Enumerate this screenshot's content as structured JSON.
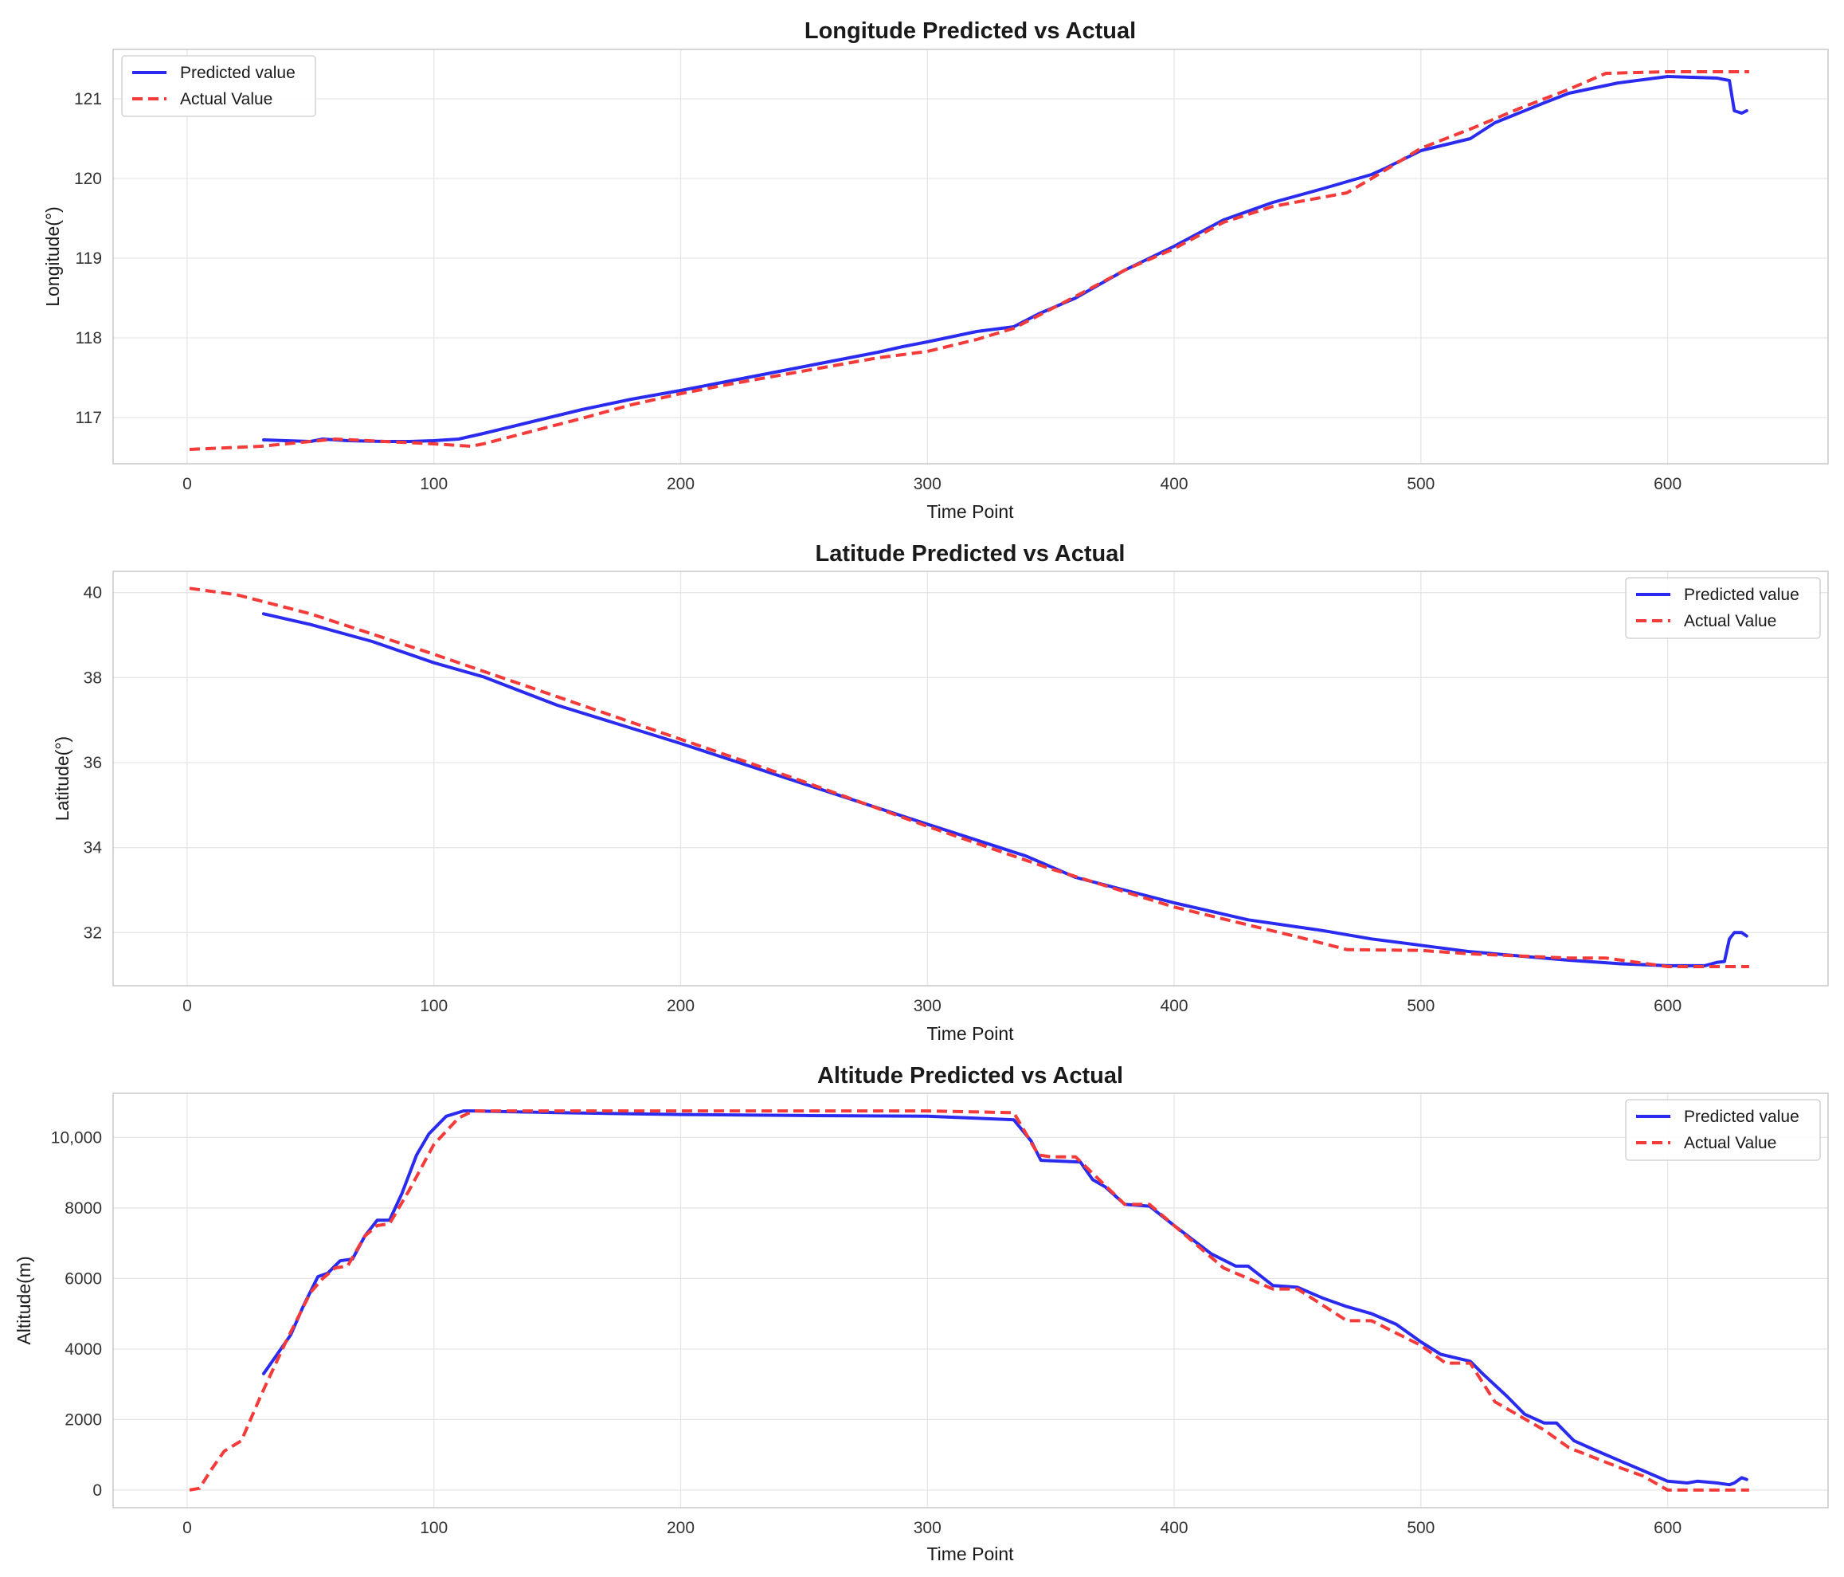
{
  "colors": {
    "predicted": "#2b2bf0",
    "actual": "#f53a3a",
    "grid": "#e6e6e6",
    "frame": "#cccccc"
  },
  "chart_data": [
    {
      "type": "line",
      "title": "Longitude Predicted vs Actual",
      "xlabel": "Time Point",
      "ylabel": "Longitude(°)",
      "xlim": [
        -30,
        665
      ],
      "ylim": [
        116.42,
        121.62
      ],
      "x_ticks": [
        0,
        100,
        200,
        300,
        400,
        500,
        600
      ],
      "x_tick_labels": [
        "0",
        "100",
        "200",
        "300",
        "400",
        "500",
        "600"
      ],
      "y_ticks": [
        117,
        118,
        119,
        120,
        121
      ],
      "y_tick_labels": [
        "117",
        "118",
        "119",
        "120",
        "121"
      ],
      "grid": true,
      "legend_position": "top-left",
      "series": [
        {
          "name": "Predicted value",
          "style": "solid",
          "x": [
            31,
            40,
            50,
            55,
            65,
            80,
            90,
            100,
            110,
            120,
            140,
            160,
            180,
            200,
            220,
            240,
            260,
            280,
            290,
            300,
            320,
            335,
            345,
            360,
            380,
            400,
            420,
            440,
            460,
            480,
            485,
            500,
            520,
            530,
            550,
            560,
            580,
            600,
            620,
            625,
            627,
            630,
            632
          ],
          "y": [
            116.72,
            116.71,
            116.7,
            116.73,
            116.71,
            116.7,
            116.7,
            116.71,
            116.73,
            116.8,
            116.95,
            117.1,
            117.23,
            117.34,
            117.46,
            117.58,
            117.7,
            117.82,
            117.89,
            117.95,
            118.08,
            118.14,
            118.3,
            118.5,
            118.85,
            119.15,
            119.48,
            119.7,
            119.87,
            120.05,
            120.12,
            120.35,
            120.5,
            120.7,
            120.95,
            121.07,
            121.2,
            121.28,
            121.26,
            121.23,
            120.85,
            120.82,
            120.85
          ]
        },
        {
          "name": "Actual Value",
          "style": "dashed",
          "x": [
            1,
            30,
            50,
            60,
            80,
            100,
            115,
            120,
            140,
            160,
            180,
            200,
            220,
            240,
            260,
            280,
            300,
            320,
            335,
            360,
            380,
            400,
            420,
            440,
            470,
            480,
            500,
            520,
            540,
            560,
            575,
            600,
            633
          ],
          "y": [
            116.6,
            116.64,
            116.7,
            116.73,
            116.7,
            116.67,
            116.64,
            116.67,
            116.83,
            116.99,
            117.16,
            117.3,
            117.42,
            117.53,
            117.64,
            117.75,
            117.83,
            117.98,
            118.12,
            118.52,
            118.85,
            119.12,
            119.45,
            119.65,
            119.82,
            120,
            120.38,
            120.62,
            120.88,
            121.12,
            121.32,
            121.34,
            121.34
          ]
        }
      ]
    },
    {
      "type": "line",
      "title": "Latitude Predicted vs Actual",
      "xlabel": "Time Point",
      "ylabel": "Latitude(°)",
      "xlim": [
        -30,
        665
      ],
      "ylim": [
        30.75,
        40.5
      ],
      "x_ticks": [
        0,
        100,
        200,
        300,
        400,
        500,
        600
      ],
      "x_tick_labels": [
        "0",
        "100",
        "200",
        "300",
        "400",
        "500",
        "600"
      ],
      "y_ticks": [
        32,
        34,
        36,
        38,
        40
      ],
      "y_tick_labels": [
        "32",
        "34",
        "36",
        "38",
        "40"
      ],
      "grid": true,
      "legend_position": "top-right",
      "series": [
        {
          "name": "Predicted value",
          "style": "solid",
          "x": [
            31,
            50,
            75,
            100,
            120,
            150,
            200,
            250,
            300,
            340,
            360,
            380,
            400,
            430,
            460,
            480,
            500,
            520,
            540,
            560,
            580,
            600,
            615,
            620,
            623,
            625,
            627,
            630,
            632
          ],
          "y": [
            39.5,
            39.25,
            38.85,
            38.35,
            38.02,
            37.35,
            36.45,
            35.5,
            34.55,
            33.8,
            33.3,
            33.0,
            32.7,
            32.3,
            32.05,
            31.85,
            31.7,
            31.55,
            31.45,
            31.35,
            31.27,
            31.22,
            31.22,
            31.3,
            31.32,
            31.85,
            32.0,
            32.0,
            31.92
          ]
        },
        {
          "name": "Actual Value",
          "style": "dashed",
          "x": [
            1,
            20,
            50,
            100,
            150,
            200,
            250,
            300,
            350,
            400,
            450,
            470,
            500,
            520,
            560,
            575,
            600,
            633
          ],
          "y": [
            40.1,
            39.95,
            39.5,
            38.55,
            37.55,
            36.55,
            35.55,
            34.5,
            33.5,
            32.6,
            31.9,
            31.6,
            31.58,
            31.5,
            31.4,
            31.4,
            31.2,
            31.2
          ]
        }
      ]
    },
    {
      "type": "line",
      "title": "Altitude Predicted vs Actual",
      "xlabel": "Time Point",
      "ylabel": "Altitude(m)",
      "xlim": [
        -30,
        665
      ],
      "ylim": [
        -500,
        11250
      ],
      "x_ticks": [
        0,
        100,
        200,
        300,
        400,
        500,
        600
      ],
      "x_tick_labels": [
        "0",
        "100",
        "200",
        "300",
        "400",
        "500",
        "600"
      ],
      "y_ticks": [
        0,
        2000,
        4000,
        6000,
        8000,
        10000
      ],
      "y_tick_labels": [
        "0",
        "2000",
        "4000",
        "6000",
        "8000",
        "10,000"
      ],
      "grid": true,
      "legend_position": "top-right",
      "series": [
        {
          "name": "Predicted value",
          "style": "solid",
          "x": [
            31,
            35,
            42,
            47,
            53,
            57,
            62,
            67,
            72,
            77,
            82,
            87,
            93,
            98,
            105,
            112,
            116,
            150,
            200,
            250,
            300,
            335,
            342,
            346,
            362,
            367,
            372,
            380,
            390,
            400,
            415,
            425,
            430,
            440,
            450,
            460,
            470,
            480,
            490,
            500,
            508,
            520,
            525,
            535,
            542,
            550,
            555,
            562,
            570,
            580,
            590,
            600,
            608,
            612,
            620,
            625,
            627,
            630,
            632
          ],
          "y": [
            3300,
            3700,
            4400,
            5200,
            6050,
            6150,
            6500,
            6550,
            7200,
            7650,
            7650,
            8400,
            9500,
            10100,
            10600,
            10750,
            10750,
            10700,
            10650,
            10620,
            10600,
            10500,
            9900,
            9350,
            9300,
            8800,
            8600,
            8100,
            8050,
            7500,
            6700,
            6350,
            6350,
            5800,
            5750,
            5450,
            5200,
            5000,
            4700,
            4200,
            3850,
            3650,
            3300,
            2650,
            2150,
            1900,
            1900,
            1400,
            1150,
            850,
            550,
            250,
            200,
            250,
            200,
            150,
            200,
            350,
            300
          ]
        },
        {
          "name": "Actual Value",
          "style": "dashed",
          "x": [
            1,
            5,
            10,
            15,
            22,
            30,
            40,
            50,
            55,
            60,
            65,
            72,
            77,
            82,
            90,
            100,
            110,
            116,
            200,
            300,
            335,
            345,
            350,
            360,
            380,
            390,
            400,
            420,
            440,
            450,
            470,
            480,
            500,
            510,
            520,
            530,
            550,
            560,
            580,
            590,
            600,
            633
          ],
          "y": [
            0,
            50,
            600,
            1100,
            1400,
            2700,
            4200,
            5600,
            6000,
            6300,
            6350,
            7200,
            7500,
            7550,
            8500,
            9800,
            10550,
            10750,
            10750,
            10750,
            10700,
            9500,
            9450,
            9450,
            8100,
            8100,
            7500,
            6300,
            5700,
            5700,
            4800,
            4800,
            4100,
            3600,
            3600,
            2500,
            1700,
            1200,
            650,
            400,
            0,
            0
          ]
        }
      ]
    }
  ]
}
